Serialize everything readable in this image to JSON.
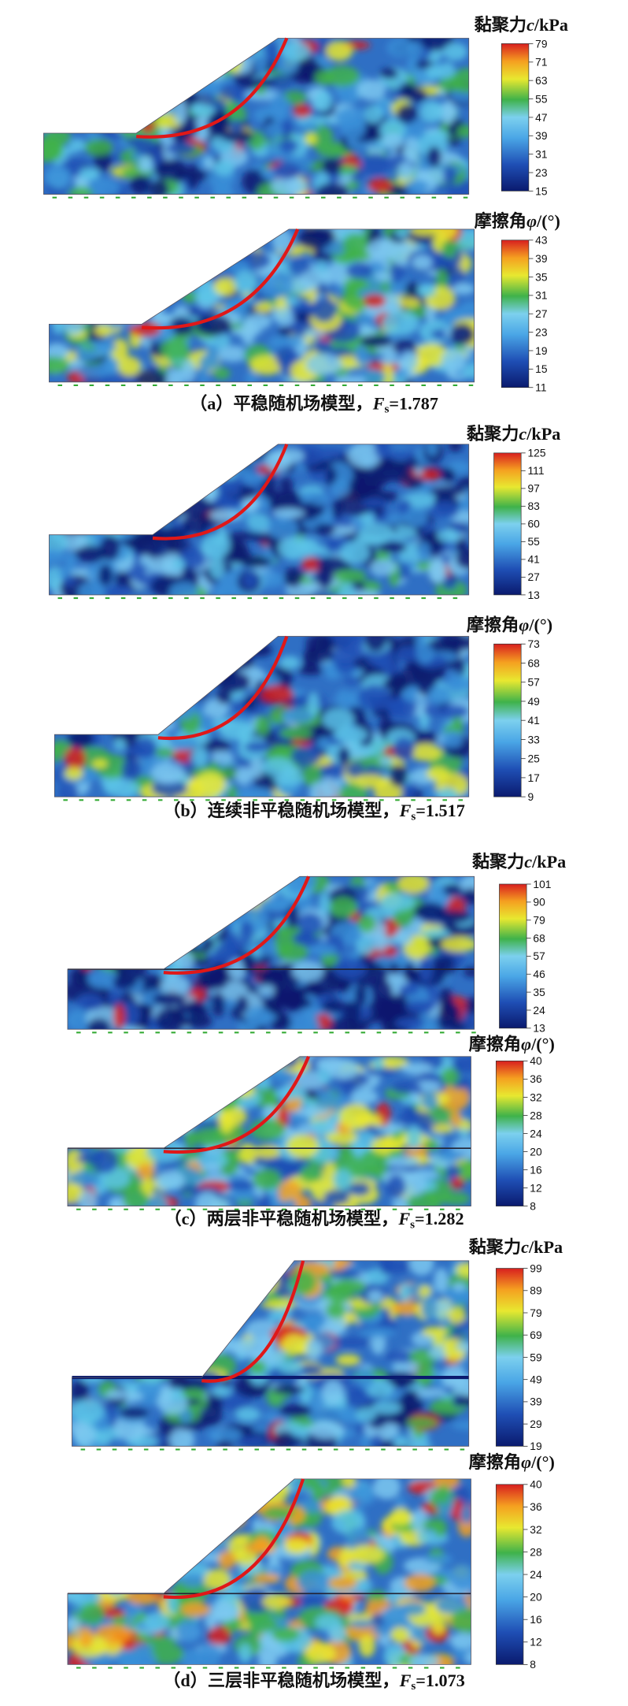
{
  "panels": [
    {
      "caption": "（a）平稳随机场模型，",
      "fs_symbol": "F",
      "fs_sub": "s",
      "fs_value": "=1.787",
      "maps": [
        {
          "title": "黏聚力",
          "symbol": "c",
          "unit": "/kPa",
          "ticks": [
            79,
            71,
            63,
            55,
            47,
            39,
            31,
            23,
            15
          ]
        },
        {
          "title": "摩擦角",
          "symbol": "φ",
          "unit": "/(°)",
          "ticks": [
            43,
            39,
            35,
            31,
            27,
            23,
            19,
            15,
            11
          ]
        }
      ]
    },
    {
      "caption": "（b）连续非平稳随机场模型，",
      "fs_symbol": "F",
      "fs_sub": "s",
      "fs_value": "=1.517",
      "maps": [
        {
          "title": "黏聚力",
          "symbol": "c",
          "unit": "/kPa",
          "ticks": [
            125,
            111,
            97,
            83,
            60,
            55,
            41,
            27,
            13
          ]
        },
        {
          "title": "摩擦角",
          "symbol": "φ",
          "unit": "/(°)",
          "ticks": [
            73,
            68,
            57,
            49,
            41,
            33,
            25,
            17,
            9
          ]
        }
      ]
    },
    {
      "caption": "（c）两层非平稳随机场模型，",
      "fs_symbol": "F",
      "fs_sub": "s",
      "fs_value": "=1.282",
      "maps": [
        {
          "title": "黏聚力",
          "symbol": "c",
          "unit": "/kPa",
          "ticks": [
            101,
            90,
            79,
            68,
            57,
            46,
            35,
            24,
            13
          ]
        },
        {
          "title": "摩擦角",
          "symbol": "φ",
          "unit": "/(°)",
          "ticks": [
            40,
            36,
            32,
            28,
            24,
            20,
            16,
            12,
            8
          ]
        }
      ]
    },
    {
      "caption": "（d）三层非平稳随机场模型，",
      "fs_symbol": "F",
      "fs_sub": "s",
      "fs_value": "=1.073",
      "maps": [
        {
          "title": "黏聚力",
          "symbol": "c",
          "unit": "/kPa",
          "ticks": [
            99,
            89,
            79,
            69,
            59,
            49,
            39,
            29,
            19
          ]
        },
        {
          "title": "摩擦角",
          "symbol": "φ",
          "unit": "/(°)",
          "ticks": [
            40,
            36,
            32,
            28,
            24,
            20,
            16,
            12,
            8
          ]
        }
      ]
    }
  ]
}
